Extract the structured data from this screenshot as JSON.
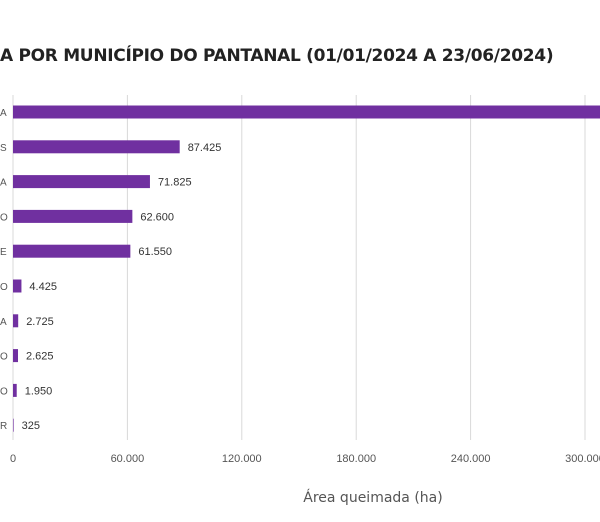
{
  "chart_data": {
    "type": "bar",
    "orientation": "horizontal",
    "title": "A POR MUNICÍPIO DO PANTANAL (01/01/2024 A 23/06/2024)",
    "xlabel": "Área queimada (ha)",
    "ylabel": "",
    "category_tail_labels": [
      "A",
      "S",
      "A",
      "O",
      "E",
      "O",
      "A",
      "O",
      "O",
      "R"
    ],
    "values": [
      310000,
      87425,
      71825,
      62600,
      61550,
      4425,
      2725,
      2625,
      1950,
      325
    ],
    "value_labels": [
      "",
      "87.425",
      "71.825",
      "62.600",
      "61.550",
      "4.425",
      "2.725",
      "2.625",
      "1.950",
      "325"
    ],
    "xticks": [
      0,
      60000,
      120000,
      180000,
      240000,
      300000
    ],
    "xtick_labels": [
      "0",
      "60.000",
      "120.000",
      "180.000",
      "240.000",
      "300.000"
    ],
    "xlim": [
      0,
      310000
    ],
    "grid": "vertical",
    "bar_color": "#7030a0"
  }
}
